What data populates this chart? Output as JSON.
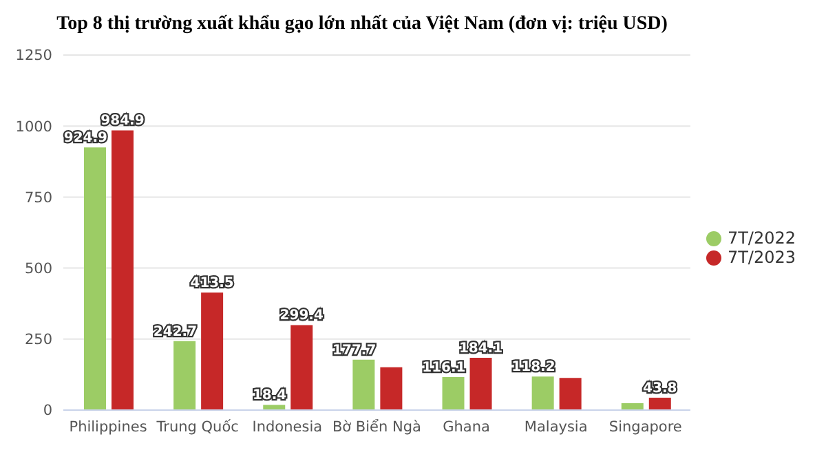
{
  "chart_data": {
    "type": "bar",
    "title": "Top 8 thị trường xuất khẩu gạo lớn nhất của Việt Nam (đơn vị: triệu USD)",
    "categories": [
      "Philippines",
      "Trung Quốc",
      "Indonesia",
      "Bờ Biển Ngà",
      "Ghana",
      "Malaysia",
      "Singapore"
    ],
    "series": [
      {
        "name": "7T/2022",
        "color": "#9ccc65",
        "values": [
          924.9,
          242.7,
          18.4,
          177.7,
          116.1,
          118.2,
          24
        ],
        "value_labels": [
          "924.9",
          "242.7",
          "18.4",
          "177.7",
          "116.1",
          "118.2",
          null
        ]
      },
      {
        "name": "7T/2023",
        "color": "#c62828",
        "values": [
          984.9,
          413.5,
          299.4,
          151,
          184.1,
          113,
          43.8
        ],
        "value_labels": [
          "984.9",
          "413.5",
          "299.4",
          null,
          "184.1",
          null,
          "43.8"
        ]
      }
    ],
    "ylim": [
      0,
      1250
    ],
    "yticks": [
      0,
      250,
      500,
      750,
      1000,
      1250
    ],
    "grid": "y",
    "legend": "right"
  }
}
